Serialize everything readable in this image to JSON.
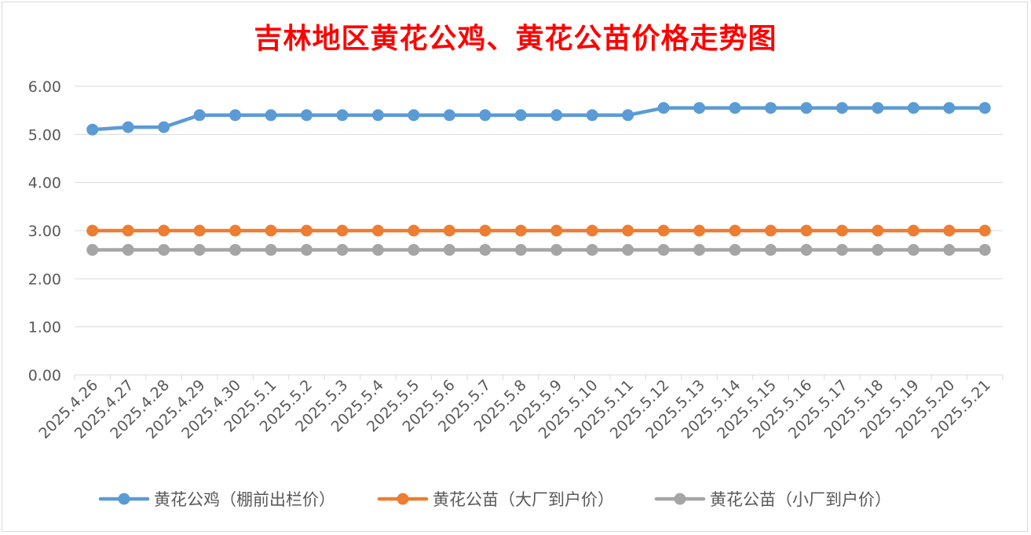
{
  "chart_data": {
    "type": "line",
    "title": "吉林地区黄花公鸡、黄花公苗价格走势图",
    "xlabel": "",
    "ylabel": "",
    "ylim": [
      0,
      6
    ],
    "yticks": [
      "0.00",
      "1.00",
      "2.00",
      "3.00",
      "4.00",
      "5.00",
      "6.00"
    ],
    "grid": true,
    "legend_position": "bottom",
    "categories": [
      "2025.4.26",
      "2025.4.27",
      "2025.4.28",
      "2025.4.29",
      "2025.4.30",
      "2025.5.1",
      "2025.5.2",
      "2025.5.3",
      "2025.5.4",
      "2025.5.5",
      "2025.5.6",
      "2025.5.7",
      "2025.5.8",
      "2025.5.9",
      "2025.5.10",
      "2025.5.11",
      "2025.5.12",
      "2025.5.13",
      "2025.5.14",
      "2025.5.15",
      "2025.5.16",
      "2025.5.17",
      "2025.5.18",
      "2025.5.19",
      "2025.5.20",
      "2025.5.21"
    ],
    "series": [
      {
        "name": "黄花公鸡（棚前出栏价）",
        "color": "#5b9bd5",
        "values": [
          5.1,
          5.15,
          5.15,
          5.4,
          5.4,
          5.4,
          5.4,
          5.4,
          5.4,
          5.4,
          5.4,
          5.4,
          5.4,
          5.4,
          5.4,
          5.4,
          5.55,
          5.55,
          5.55,
          5.55,
          5.55,
          5.55,
          5.55,
          5.55,
          5.55,
          5.55
        ]
      },
      {
        "name": "黄花公苗（大厂到户价）",
        "color": "#ed7d31",
        "values": [
          3,
          3,
          3,
          3,
          3,
          3,
          3,
          3,
          3,
          3,
          3,
          3,
          3,
          3,
          3,
          3,
          3,
          3,
          3,
          3,
          3,
          3,
          3,
          3,
          3,
          3
        ]
      },
      {
        "name": "黄花公苗（小厂到户价）",
        "color": "#a5a5a5",
        "values": [
          2.6,
          2.6,
          2.6,
          2.6,
          2.6,
          2.6,
          2.6,
          2.6,
          2.6,
          2.6,
          2.6,
          2.6,
          2.6,
          2.6,
          2.6,
          2.6,
          2.6,
          2.6,
          2.6,
          2.6,
          2.6,
          2.6,
          2.6,
          2.6,
          2.6,
          2.6
        ]
      }
    ]
  }
}
